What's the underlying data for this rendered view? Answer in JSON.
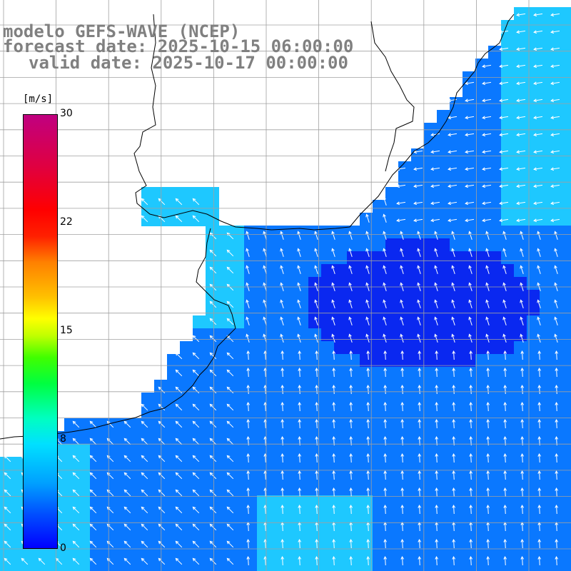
{
  "title": {
    "line1": "modelo GEFS-WAVE (NCEP)",
    "line2": "forecast date: 2025-10-15 06:00:00",
    "line3": "valid date: 2025-10-17 00:00:00"
  },
  "colorbar": {
    "unit": "[m/s]",
    "ticks": [
      "30",
      "22",
      "15",
      "8",
      "0"
    ],
    "min": 0,
    "max": 30,
    "colors": [
      "#0000ff",
      "#00a0ff",
      "#00ffc0",
      "#40ff00",
      "#ffff00",
      "#ff8000",
      "#ff0000",
      "#c00080"
    ]
  },
  "map": {
    "land_color": "#ffffff",
    "grid_color": "#a0a0a0",
    "coast_color": "#000000",
    "arrow_color": "#ffffff",
    "field_colors": {
      "dark": "#0a28f0",
      "mid": "#0a78ff",
      "light": "#1ec8ff"
    }
  }
}
